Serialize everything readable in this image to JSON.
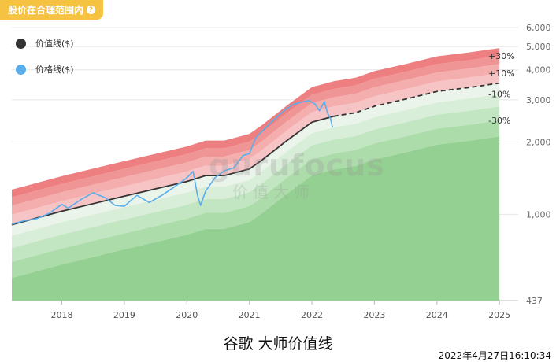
{
  "badge": {
    "label": "股价在合理范围内",
    "icon": "question-circle-icon"
  },
  "legend": [
    {
      "label": "价值线($)",
      "color": "#333333"
    },
    {
      "label": "价格线($)",
      "color": "#5aaeec"
    }
  ],
  "watermark": {
    "main": "gurufocus",
    "sub": "价值大师"
  },
  "title": "谷歌 大师价值线",
  "timestamp": "2022年4月27日16:10:34",
  "colors": {
    "value_line": "#333333",
    "price_line": "#5aaeec",
    "upper_bands": [
      "#f2d3d3",
      "#f7c4c6",
      "#f4aeae",
      "#f09595",
      "#ee7f80"
    ],
    "lower_bands": [
      "#eaf4ea",
      "#d9eed8",
      "#c3e6c2",
      "#addcab",
      "#94d091"
    ]
  },
  "chart_data": {
    "type": "area",
    "y_scale": "log",
    "ylim": [
      437,
      6000
    ],
    "y_ticks": [
      437,
      1000,
      2000,
      3000,
      4000,
      5000,
      6000
    ],
    "y_tick_labels": [
      "437",
      "1,000",
      "2,000",
      "3,000",
      "4,000",
      "5,000",
      "6,000"
    ],
    "xlim": [
      2017.2,
      2025.3
    ],
    "x_ticks": [
      2018,
      2019,
      2020,
      2021,
      2022,
      2023,
      2024,
      2025
    ],
    "x_tick_labels": [
      "2018",
      "2019",
      "2020",
      "2021",
      "2022",
      "2023",
      "2024",
      "2025"
    ],
    "grid": true,
    "legend_position": "top-left",
    "band_multipliers": [
      1.4,
      1.3,
      1.2,
      1.1,
      1.0,
      0.9,
      0.8,
      0.7,
      0.6
    ],
    "band_labels": [
      {
        "label": "+30%",
        "level": 1.3
      },
      {
        "label": "+10%",
        "level": 1.1
      },
      {
        "label": "-10%",
        "level": 0.9
      },
      {
        "label": "-30%",
        "level": 0.7
      }
    ],
    "series": [
      {
        "name": "价值线($)",
        "style": "solid-then-dashed",
        "projection_start": 2022.35,
        "x": [
          2017.2,
          2018.0,
          2019.0,
          2020.0,
          2020.3,
          2020.6,
          2021.0,
          2021.2,
          2021.6,
          2022.0,
          2022.35,
          2022.7,
          2023.0,
          2023.5,
          2024.0,
          2024.5,
          2025.0
        ],
        "y": [
          905,
          1030,
          1190,
          1370,
          1450,
          1450,
          1545,
          1680,
          2030,
          2420,
          2560,
          2650,
          2820,
          3020,
          3250,
          3370,
          3520
        ]
      },
      {
        "name": "价格线($)",
        "x": [
          2017.2,
          2017.4,
          2017.6,
          2017.8,
          2018.0,
          2018.1,
          2018.3,
          2018.5,
          2018.7,
          2018.85,
          2019.0,
          2019.2,
          2019.4,
          2019.6,
          2019.8,
          2020.0,
          2020.1,
          2020.17,
          2020.22,
          2020.3,
          2020.45,
          2020.6,
          2020.75,
          2020.9,
          2021.0,
          2021.1,
          2021.25,
          2021.4,
          2021.55,
          2021.7,
          2021.85,
          2021.95,
          2022.05,
          2022.12,
          2022.2,
          2022.25,
          2022.3,
          2022.33
        ],
        "y": [
          910,
          940,
          960,
          1010,
          1100,
          1060,
          1150,
          1230,
          1170,
          1090,
          1080,
          1200,
          1120,
          1200,
          1300,
          1420,
          1510,
          1200,
          1090,
          1250,
          1420,
          1520,
          1560,
          1760,
          1790,
          2080,
          2280,
          2490,
          2700,
          2870,
          2940,
          2980,
          2880,
          2700,
          2950,
          2640,
          2490,
          2300
        ]
      }
    ]
  }
}
